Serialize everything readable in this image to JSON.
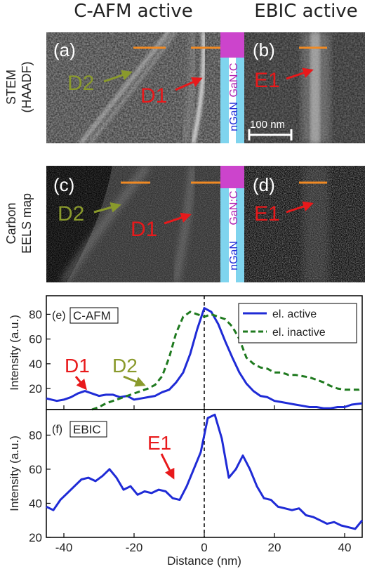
{
  "headers": {
    "left": "C-AFM active",
    "right": "EBIC active"
  },
  "row_labels": {
    "stem": [
      "STEM",
      "(HAADF)"
    ],
    "eels": [
      "Carbon",
      "EELS map"
    ]
  },
  "panels": {
    "a": "(a)",
    "b": "(b)",
    "c": "(c)",
    "d": "(d)",
    "e": "(e)",
    "f": "(f)"
  },
  "markers": {
    "d1": "D1",
    "d2": "D2",
    "e1": "E1"
  },
  "layers": {
    "top": "GaN:C",
    "bottom": "nGaN"
  },
  "scalebar": "100 nm",
  "plot_tags": {
    "e": "C-AFM",
    "f": "EBIC"
  },
  "colors": {
    "red": "#e8191b",
    "olive": "#8a9a2c",
    "orange": "#f08a24",
    "blue": "#1f2bd6",
    "green": "#1f7a1f",
    "magenta": "#cc44cc",
    "cyan": "#7fd4ee"
  },
  "chart_data": [
    {
      "type": "line",
      "panel": "(e)",
      "ylabel": "Intensity (a.u.)",
      "xlim": [
        -45,
        45
      ],
      "ylim": [
        3,
        95
      ],
      "yticks": [
        20,
        40,
        60,
        80
      ],
      "legend_position": "top-right",
      "series": [
        {
          "name": "el. active",
          "style": "solid",
          "x": [
            -45,
            -42,
            -40,
            -38,
            -36,
            -34,
            -32,
            -30,
            -28,
            -26,
            -24,
            -22,
            -20,
            -18,
            -16,
            -14,
            -12,
            -10,
            -8,
            -6,
            -4,
            -2,
            0,
            2,
            4,
            6,
            8,
            10,
            12,
            14,
            16,
            18,
            20,
            22,
            24,
            26,
            28,
            30,
            32,
            34,
            36,
            38,
            40,
            42,
            45
          ],
          "y": [
            12,
            10,
            11,
            13,
            16,
            18,
            16,
            14,
            15,
            15,
            13,
            14,
            11,
            12,
            13,
            14,
            17,
            19,
            25,
            33,
            48,
            68,
            85,
            82,
            72,
            58,
            45,
            33,
            24,
            18,
            14,
            13,
            10,
            9,
            8,
            7,
            6,
            5,
            5,
            4,
            4,
            5,
            5,
            7,
            8
          ]
        },
        {
          "name": "el. inactive",
          "style": "dashed",
          "x": [
            -32,
            -30,
            -28,
            -26,
            -24,
            -22,
            -20,
            -18,
            -16,
            -14,
            -12,
            -10,
            -8,
            -6,
            -4,
            -2,
            0,
            2,
            4,
            6,
            8,
            10,
            12,
            14,
            16,
            18,
            20,
            22,
            24,
            26,
            28,
            30,
            32,
            34,
            36,
            38,
            40,
            42,
            44,
            45
          ],
          "y": [
            3,
            5,
            8,
            10,
            12,
            14,
            16,
            18,
            20,
            23,
            30,
            45,
            65,
            78,
            82,
            80,
            78,
            80,
            78,
            76,
            70,
            60,
            45,
            40,
            37,
            36,
            33,
            33,
            31,
            31,
            30,
            29,
            27,
            25,
            22,
            20,
            19,
            19,
            19,
            20
          ]
        }
      ],
      "annotations": [
        "D1",
        "D2"
      ]
    },
    {
      "type": "line",
      "panel": "(f)",
      "xlabel": "Distance (nm)",
      "ylabel": "Intensity (a.u.)",
      "xlim": [
        -45,
        45
      ],
      "ylim": [
        20,
        95
      ],
      "xticks": [
        -40,
        -20,
        0,
        20,
        40
      ],
      "yticks": [
        20,
        40,
        60,
        80
      ],
      "series": [
        {
          "style": "solid",
          "x": [
            -45,
            -43,
            -41,
            -39,
            -37,
            -35,
            -33,
            -31,
            -29,
            -27,
            -25,
            -23,
            -21,
            -19,
            -17,
            -15,
            -13,
            -11,
            -9,
            -7,
            -5,
            -3,
            -1,
            1,
            3,
            5,
            7,
            9,
            11,
            13,
            15,
            17,
            19,
            21,
            23,
            25,
            27,
            29,
            31,
            33,
            35,
            37,
            39,
            41,
            43,
            45
          ],
          "y": [
            38,
            36,
            42,
            46,
            50,
            54,
            55,
            53,
            56,
            60,
            55,
            48,
            50,
            45,
            47,
            46,
            48,
            47,
            43,
            42,
            50,
            60,
            70,
            90,
            92,
            78,
            55,
            60,
            68,
            60,
            50,
            43,
            42,
            38,
            37,
            36,
            37,
            33,
            32,
            30,
            28,
            29,
            27,
            26,
            25,
            30
          ]
        }
      ],
      "annotations": [
        "E1"
      ]
    }
  ]
}
